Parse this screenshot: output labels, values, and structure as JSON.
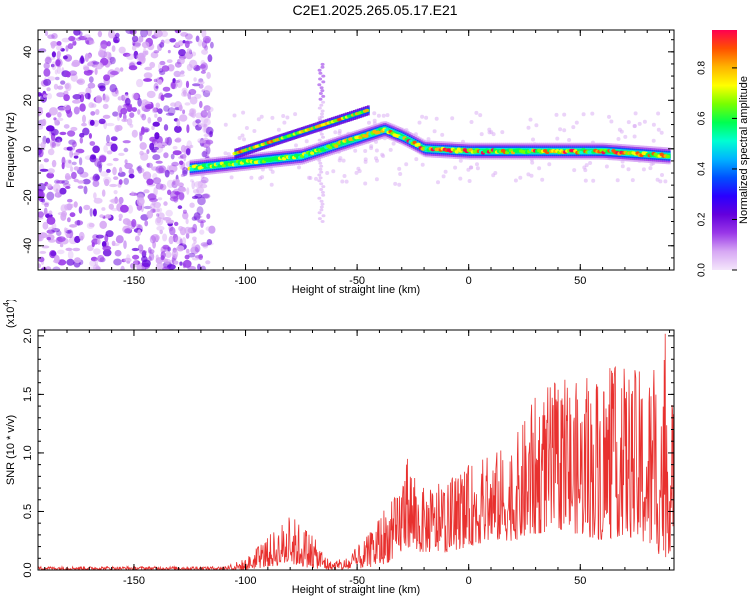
{
  "title": "C2E1.2025.265.05.17.E21",
  "chart_data": [
    {
      "type": "heatmap",
      "name": "spectrogram",
      "xlabel": "Height of straight line (km)",
      "ylabel": "Frequency (Hz)",
      "xlim": [
        -193,
        92
      ],
      "ylim": [
        -50,
        49
      ],
      "xticks": [
        -150,
        -100,
        -50,
        0,
        50
      ],
      "yticks": [
        -40,
        -20,
        0,
        20,
        40
      ],
      "colorbar": {
        "label": "Normalized spectral amplitude",
        "range": [
          0.0,
          0.95
        ],
        "ticks": [
          "0.0",
          "0.2",
          "0.4",
          "0.6",
          "0.8"
        ],
        "colors": [
          "#f4e6fb",
          "#d7a8f4",
          "#9a38e8",
          "#6400dc",
          "#2a00ff",
          "#0050ff",
          "#00b4ff",
          "#00ffd2",
          "#00ff50",
          "#78ff00",
          "#ffff00",
          "#ffb400",
          "#ff5000",
          "#ff0050"
        ]
      },
      "features": [
        {
          "label": "noise",
          "x_range": [
            -193,
            -115
          ],
          "y_range": [
            -50,
            49
          ]
        },
        {
          "label": "upper branch",
          "x": [
            -105,
            -45
          ],
          "y": [
            -2,
            16
          ]
        },
        {
          "label": "main trace",
          "x": [
            -125,
            -75,
            -38,
            -30,
            -20,
            0,
            30,
            60,
            90
          ],
          "y": [
            -8,
            -3,
            8,
            5,
            0,
            -1,
            -1,
            -1,
            -3
          ]
        },
        {
          "label": "vertical streak",
          "x": -66,
          "y_range": [
            -30,
            35
          ]
        }
      ]
    },
    {
      "type": "line",
      "name": "snr",
      "xlabel": "Height of straight line (km)",
      "ylabel": "SNR (10 * v/v)",
      "scale_label": "(x10",
      "scale_exp": "4",
      "xlim": [
        -193,
        92
      ],
      "ylim": [
        0,
        2.05
      ],
      "xticks": [
        -150,
        -100,
        -50,
        0,
        50
      ],
      "yticks": [
        "0.0",
        "0.5",
        "1.0",
        "1.5",
        "2.0"
      ],
      "color": "#e8302e",
      "envelope": {
        "x": [
          -193,
          -110,
          -100,
          -92,
          -80,
          -72,
          -62,
          -55,
          -45,
          -38,
          -32,
          -28,
          -22,
          -10,
          0,
          10,
          20,
          30,
          40,
          50,
          60,
          70,
          80,
          88,
          92
        ],
        "max": [
          0.03,
          0.03,
          0.1,
          0.25,
          0.48,
          0.35,
          0.08,
          0.1,
          0.3,
          0.55,
          0.65,
          1.05,
          0.7,
          0.75,
          0.9,
          1.0,
          1.1,
          1.5,
          1.65,
          1.6,
          1.75,
          1.75,
          1.7,
          2.05,
          1.3
        ],
        "min": [
          0.0,
          0.0,
          0.0,
          0.02,
          0.05,
          0.02,
          0.0,
          0.0,
          0.02,
          0.05,
          0.1,
          0.2,
          0.15,
          0.15,
          0.2,
          0.25,
          0.25,
          0.3,
          0.35,
          0.3,
          0.25,
          0.3,
          0.2,
          0.1,
          0.2
        ]
      }
    }
  ]
}
